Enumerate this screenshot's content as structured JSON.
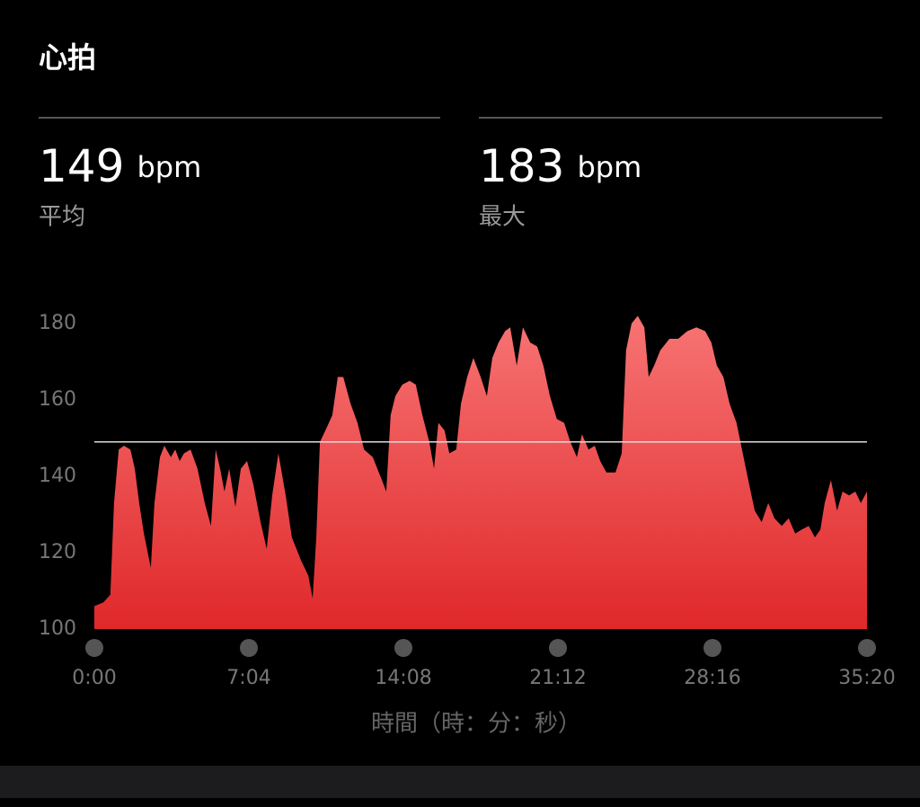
{
  "title": "心拍",
  "stats": [
    {
      "value": 149,
      "unit": "bpm",
      "label": "平均"
    },
    {
      "value": 183,
      "unit": "bpm",
      "label": "最大"
    }
  ],
  "chart_data": {
    "type": "area",
    "x_label": "時間（時：分：秒）",
    "x": [
      0,
      25,
      44,
      54,
      67,
      81,
      99,
      111,
      123,
      136,
      155,
      165,
      180,
      192,
      210,
      222,
      234,
      246,
      264,
      283,
      303,
      320,
      333,
      345,
      357,
      370,
      387,
      402,
      419,
      436,
      456,
      473,
      488,
      505,
      525,
      542,
      567,
      587,
      599,
      609,
      619,
      634,
      653,
      668,
      683,
      703,
      722,
      740,
      764,
      789,
      801,
      813,
      826,
      845,
      865,
      882,
      900,
      919,
      932,
      944,
      961,
      974,
      993,
      1006,
      1023,
      1040,
      1060,
      1077,
      1092,
      1109,
      1127,
      1141,
      1159,
      1176,
      1196,
      1215,
      1232,
      1250,
      1269,
      1289,
      1306,
      1324,
      1338,
      1356,
      1373,
      1388,
      1405,
      1430,
      1447,
      1459,
      1474,
      1491,
      1509,
      1521,
      1536,
      1553,
      1578,
      1602,
      1627,
      1652,
      1676,
      1693,
      1708,
      1726,
      1743,
      1762,
      1777,
      1792,
      1812,
      1831,
      1849,
      1866,
      1886,
      1905,
      1923,
      1940,
      1960,
      1977,
      1992,
      2004,
      2021,
      2038,
      2053,
      2071,
      2088,
      2103,
      2120
    ],
    "values": [
      106,
      107,
      109,
      133,
      147,
      148,
      147,
      142,
      133,
      125,
      116,
      133,
      145,
      148,
      145,
      147,
      144,
      146,
      147,
      142,
      133,
      127,
      147,
      142,
      136,
      142,
      132,
      142,
      144,
      138,
      128,
      121,
      135,
      146,
      135,
      124,
      118,
      114,
      108,
      124,
      149,
      152,
      156,
      166,
      166,
      159,
      154,
      147,
      145,
      139,
      136,
      156,
      161,
      164,
      165,
      164,
      156,
      149,
      142,
      154,
      152,
      146,
      147,
      159,
      166,
      171,
      166,
      161,
      171,
      175,
      178,
      179,
      169,
      179,
      175,
      174,
      169,
      161,
      155,
      154,
      149,
      145,
      151,
      147,
      148,
      144,
      141,
      141,
      146,
      173,
      180,
      182,
      179,
      166,
      169,
      173,
      176,
      176,
      178,
      179,
      178,
      175,
      169,
      166,
      159,
      154,
      147,
      140,
      131,
      128,
      133,
      129,
      127,
      129,
      125,
      126,
      127,
      124,
      126,
      133,
      139,
      131,
      136,
      135,
      136,
      133,
      136
    ],
    "color": "#e8393a",
    "xlim": [
      0,
      2120
    ],
    "xticks": [
      {
        "value": 0,
        "label": "0:00"
      },
      {
        "value": 424,
        "label": "7:04"
      },
      {
        "value": 848,
        "label": "14:08"
      },
      {
        "value": 1272,
        "label": "21:12"
      },
      {
        "value": 1696,
        "label": "28:16"
      },
      {
        "value": 2120,
        "label": "35:20"
      }
    ],
    "ylim": [
      100,
      180
    ],
    "yticks": [
      100,
      120,
      140,
      160,
      180
    ]
  }
}
